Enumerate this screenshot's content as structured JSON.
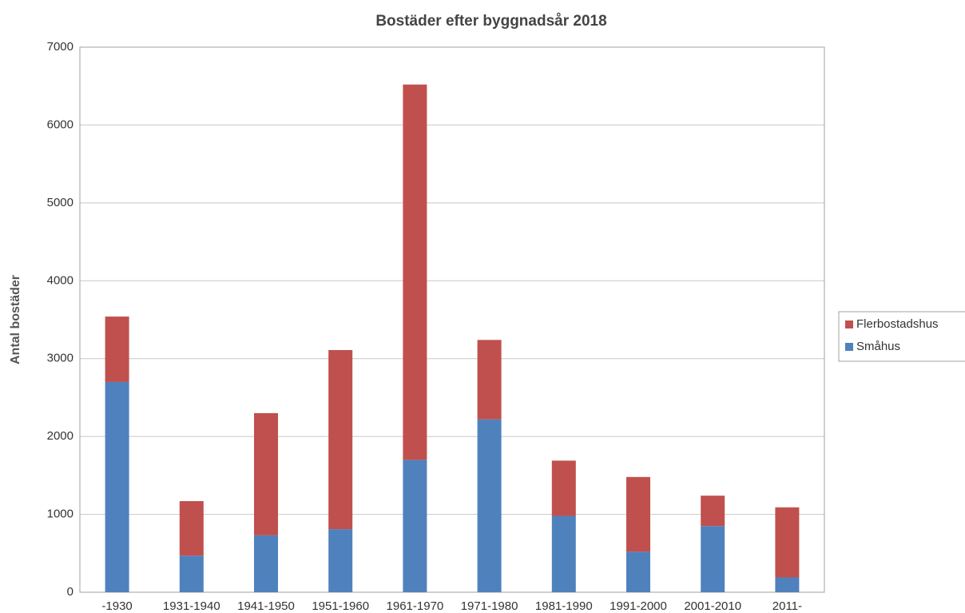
{
  "chart_data": {
    "type": "stacked_bar",
    "title": "Bostäder efter byggnadsår 2018",
    "y_label": "Antal bostäder",
    "categories": [
      "-1930",
      "1931-1940",
      "1941-1950",
      "1951-1960",
      "1961-1970",
      "1971-1980",
      "1981-1990",
      "1991-2000",
      "2001-2010",
      "2011-"
    ],
    "series": [
      {
        "name": "Småhus",
        "color": "#4f81bd",
        "values": [
          2700,
          470,
          730,
          810,
          1700,
          2220,
          980,
          520,
          850,
          190
        ]
      },
      {
        "name": "Flerbostadshus",
        "color": "#c0504d",
        "values": [
          840,
          700,
          1570,
          2300,
          4820,
          1020,
          710,
          960,
          390,
          900
        ]
      }
    ],
    "ylim": [
      0,
      7000
    ],
    "yticks": [
      0,
      1000,
      2000,
      3000,
      4000,
      5000,
      6000,
      7000
    ],
    "grid": true,
    "legend_position": "right"
  }
}
